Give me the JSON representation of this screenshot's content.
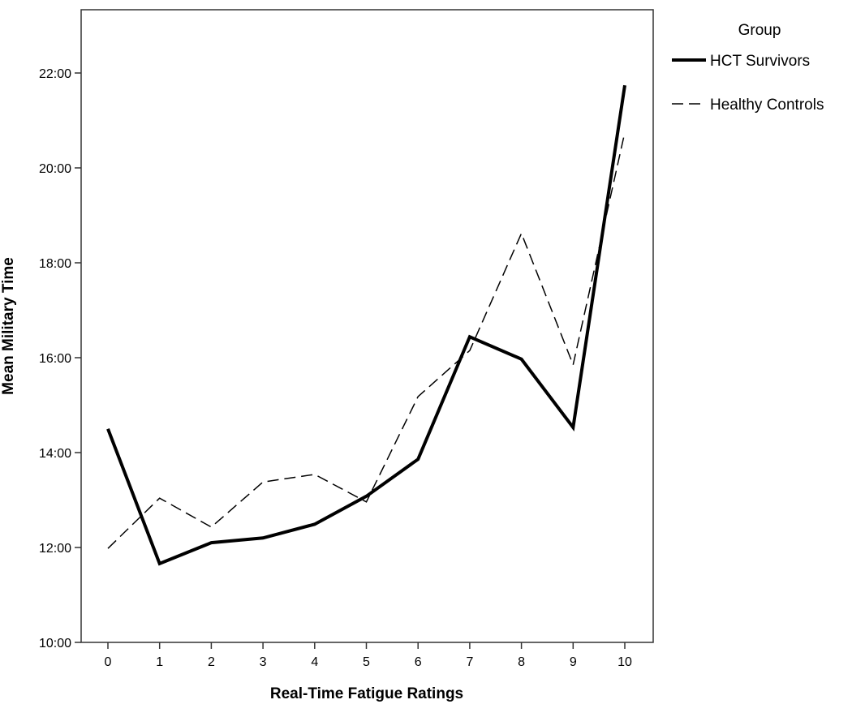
{
  "chart_data": {
    "type": "line",
    "title": "",
    "xlabel": "Real-Time Fatigue Ratings",
    "ylabel": "Mean Military Time",
    "x": [
      0,
      1,
      2,
      3,
      4,
      5,
      6,
      7,
      8,
      9,
      10
    ],
    "x_tick_labels": [
      "0",
      "1",
      "2",
      "3",
      "4",
      "5",
      "6",
      "7",
      "8",
      "9",
      "10"
    ],
    "y_unit": "hours",
    "ylim": [
      10,
      23.3
    ],
    "y_ticks": [
      10,
      12,
      14,
      16,
      18,
      20,
      22
    ],
    "y_tick_labels": [
      "10:00",
      "12:00",
      "14:00",
      "16:00",
      "18:00",
      "20:00",
      "22:00"
    ],
    "grid": false,
    "legend": {
      "title": "Group",
      "position": "right"
    },
    "series": [
      {
        "name": "HCT Survivors",
        "style": "solid-thick",
        "values": [
          14.5,
          11.66,
          12.1,
          12.2,
          12.49,
          13.08,
          13.86,
          16.44,
          15.97,
          14.53,
          21.74
        ]
      },
      {
        "name": "Healthy Controls",
        "style": "dashed",
        "values": [
          11.98,
          13.04,
          12.43,
          13.38,
          13.54,
          12.96,
          15.18,
          16.15,
          18.62,
          15.85,
          20.75
        ]
      }
    ]
  }
}
